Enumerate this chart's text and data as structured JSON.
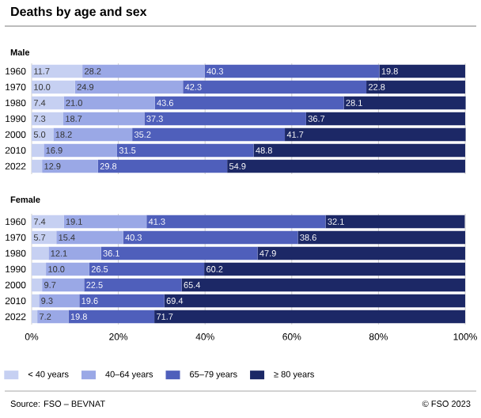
{
  "chart_data": [
    {
      "type": "bar",
      "orientation": "horizontal",
      "stacked": true,
      "title": "Deaths by age and sex",
      "subtitle": "Male",
      "categories": [
        "1960",
        "1970",
        "1980",
        "1990",
        "2000",
        "2010",
        "2022"
      ],
      "series": [
        {
          "color": "#c6d0f2",
          "values": [
            11.7,
            10.0,
            7.4,
            7.3,
            5.0,
            2.8,
            2.4
          ],
          "value_labels": [
            "11.7",
            "10.0",
            "7.4",
            "7.3",
            "5.0",
            null,
            null
          ]
        },
        {
          "color": "#9aa8e6",
          "values": [
            28.2,
            24.9,
            21.0,
            18.7,
            18.2,
            16.9,
            12.9
          ],
          "value_labels": [
            "28.2",
            "24.9",
            "21.0",
            "18.7",
            "18.2",
            "16.9",
            "12.9"
          ]
        },
        {
          "color": "#4f5fbb",
          "values": [
            40.3,
            42.3,
            43.6,
            37.3,
            35.2,
            31.5,
            29.8
          ],
          "value_labels": [
            "40.3",
            "42.3",
            "43.6",
            "37.3",
            "35.2",
            "31.5",
            "29.8"
          ]
        },
        {
          "color": "#1c2866",
          "values": [
            19.8,
            22.8,
            28.1,
            36.7,
            41.7,
            48.8,
            54.9
          ],
          "value_labels": [
            "19.8",
            "22.8",
            "28.1",
            "36.7",
            "41.7",
            "48.8",
            "54.9"
          ]
        }
      ],
      "xlim": [
        0,
        100
      ],
      "xticks": [
        {
          "value": 0,
          "label": null
        },
        {
          "value": 20,
          "label": null
        },
        {
          "value": 40,
          "label": null
        },
        {
          "value": 60,
          "label": null
        },
        {
          "value": 80,
          "label": null
        },
        {
          "value": 100,
          "label": null
        }
      ],
      "grid": "x",
      "tick_labels": "y"
    },
    {
      "type": "bar",
      "orientation": "horizontal",
      "stacked": true,
      "title": "Female",
      "categories": [
        "1960",
        "1970",
        "1980",
        "1990",
        "2000",
        "2010",
        "2022"
      ],
      "series": [
        {
          "name": "< 40 years",
          "color": "#c6d0f2",
          "values": [
            7.4,
            5.7,
            3.9,
            3.3,
            2.4,
            1.7,
            1.3
          ],
          "value_labels": [
            "7.4",
            "5.7",
            null,
            null,
            null,
            null,
            null
          ]
        },
        {
          "name": "40–64 years",
          "color": "#9aa8e6",
          "values": [
            19.1,
            15.4,
            12.1,
            10.0,
            9.7,
            9.3,
            7.2
          ],
          "value_labels": [
            "19.1",
            "15.4",
            "12.1",
            "10.0",
            "9.7",
            "9.3",
            "7.2"
          ]
        },
        {
          "name": "65–79 years",
          "color": "#4f5fbb",
          "values": [
            41.3,
            40.3,
            36.1,
            26.5,
            22.5,
            19.6,
            19.8
          ],
          "value_labels": [
            "41.3",
            "40.3",
            "36.1",
            "26.5",
            "22.5",
            "19.6",
            "19.8"
          ]
        },
        {
          "name": "≥ 80 years",
          "color": "#1c2866",
          "values": [
            32.1,
            38.6,
            47.9,
            60.2,
            65.4,
            69.4,
            71.7
          ],
          "value_labels": [
            "32.1",
            "38.6",
            "47.9",
            "60.2",
            "65.4",
            "69.4",
            "71.7"
          ]
        }
      ],
      "xlim": [
        0,
        100
      ],
      "xticks": [
        {
          "value": 0,
          "label": "0%"
        },
        {
          "value": 20,
          "label": "20%"
        },
        {
          "value": 40,
          "label": "40%"
        },
        {
          "value": 60,
          "label": "60%"
        },
        {
          "value": 80,
          "label": "80%"
        },
        {
          "value": 100,
          "label": "100%"
        }
      ],
      "grid": "x",
      "legend": "bottom",
      "annotations": [
        "Source: FSO – BEVNAT",
        "© FSO 2023"
      ]
    }
  ]
}
